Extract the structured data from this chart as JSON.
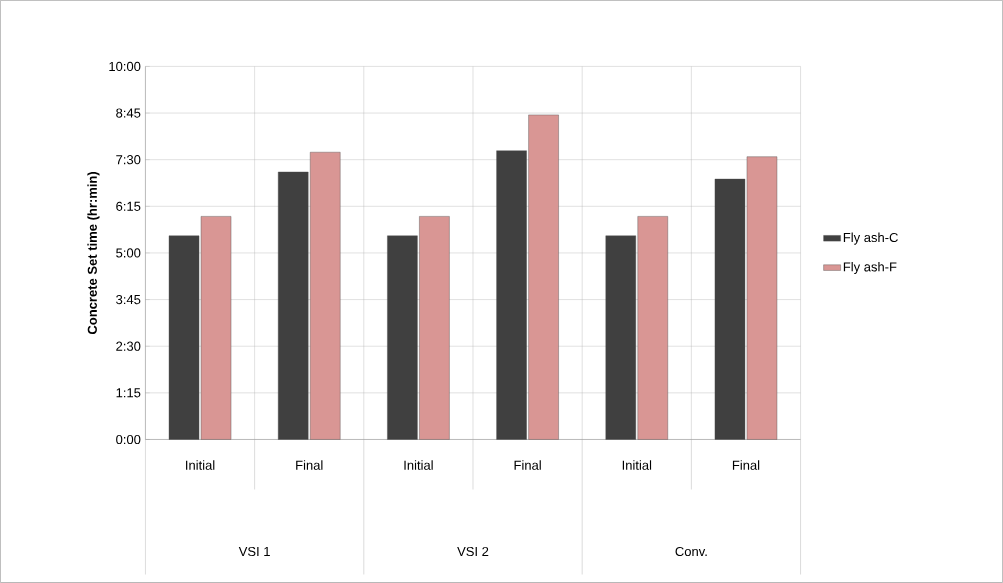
{
  "chart_data": {
    "type": "bar",
    "ylabel": "Concrete  Set time (hr:min)",
    "categories": [
      "Initial",
      "Final",
      "Initial",
      "Final",
      "Initial",
      "Final"
    ],
    "annotations": [
      "VSI 1",
      "VSI 2",
      "Conv."
    ],
    "series": [
      {
        "name": "Fly ash-C",
        "color": "#404040",
        "values": [
          5.46,
          7.17,
          5.46,
          7.74,
          5.46,
          6.98
        ]
      },
      {
        "name": "Fly ash-F",
        "color": "#d99694",
        "values": [
          5.98,
          7.7,
          5.98,
          8.7,
          5.98,
          7.58
        ]
      }
    ],
    "ylim": [
      0,
      10
    ],
    "yticks": [
      {
        "value": 0,
        "label": "0:00"
      },
      {
        "value": 1.25,
        "label": "1:15"
      },
      {
        "value": 2.5,
        "label": "2:30"
      },
      {
        "value": 3.75,
        "label": "3:45"
      },
      {
        "value": 5,
        "label": "5:00"
      },
      {
        "value": 6.25,
        "label": "6:15"
      },
      {
        "value": 7.5,
        "label": "7:30"
      },
      {
        "value": 8.75,
        "label": "8:45"
      },
      {
        "value": 10,
        "label": "10:00"
      }
    ],
    "grid": true,
    "legend": "right"
  }
}
